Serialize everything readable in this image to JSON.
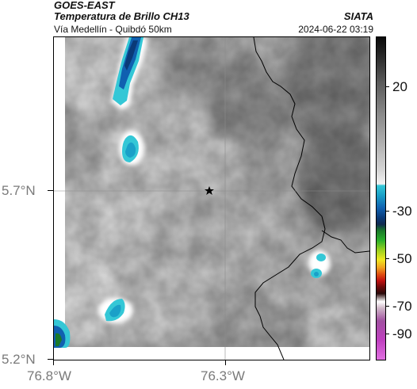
{
  "header": {
    "agency": "GOES-EAST",
    "product": "Temperatura de Brillo CH13",
    "source": "SIATA",
    "route": "Vía Medellín - Quibdó 50km",
    "timestamp": "2024-06-22 03:19"
  },
  "axes": {
    "lat_labels": [
      "5.7°N",
      "5.2°N"
    ],
    "lon_labels": [
      "76.8°W",
      "76.3°W"
    ]
  },
  "colorbar": {
    "tick_labels": [
      "20",
      "-30",
      "-50",
      "-70",
      "-90"
    ],
    "colors": {
      "warm": "#b4b4b4",
      "cold_cyan": "#34c7d6",
      "cold_blue": "#1060b0",
      "deep_blue": "#0a3a78"
    }
  },
  "map": {
    "marker_icon": "star-icon",
    "border_icon": "border-line",
    "grid": "on"
  }
}
